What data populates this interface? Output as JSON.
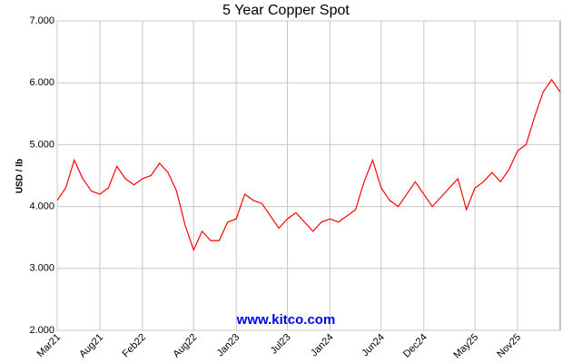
{
  "chart_data": {
    "type": "line",
    "title": "5 Year Copper Spot",
    "y_label": "USD / lb",
    "annotation": "www.kitco.com",
    "x": [
      "Mar21",
      null,
      null,
      null,
      null,
      "Aug21",
      null,
      null,
      null,
      null,
      "Feb22",
      null,
      null,
      null,
      null,
      null,
      "Aug22",
      null,
      null,
      null,
      null,
      "Jan23",
      null,
      null,
      null,
      null,
      null,
      "Jul23",
      null,
      null,
      null,
      null,
      "Jan24",
      null,
      null,
      null,
      null,
      null,
      "Jun24",
      null,
      null,
      null,
      null,
      "Dec24",
      null,
      null,
      null,
      null,
      null,
      "May25",
      null,
      null,
      null,
      null,
      "Nov25",
      null,
      null,
      null,
      null,
      null
    ],
    "series": [
      {
        "name": "Copper",
        "color": "#ff0000",
        "values": [
          4.1,
          4.3,
          4.75,
          4.45,
          4.25,
          4.2,
          4.3,
          4.65,
          4.45,
          4.35,
          4.45,
          4.5,
          4.7,
          4.55,
          4.25,
          3.7,
          3.3,
          3.6,
          3.45,
          3.45,
          3.75,
          3.8,
          4.2,
          4.1,
          4.05,
          3.85,
          3.65,
          3.8,
          3.9,
          3.75,
          3.6,
          3.75,
          3.8,
          3.75,
          3.85,
          3.95,
          4.4,
          4.75,
          4.3,
          4.1,
          4.0,
          4.2,
          4.4,
          4.2,
          4.0,
          4.15,
          4.3,
          4.45,
          3.95,
          4.3,
          4.4,
          4.55,
          4.4,
          4.6,
          4.9,
          5.0,
          5.45,
          5.85,
          6.05,
          5.85
        ]
      }
    ],
    "ylim": [
      2,
      7
    ],
    "yticks": [
      {
        "value": 2,
        "label": "2.000"
      },
      {
        "value": 3,
        "label": "3.000"
      },
      {
        "value": 4,
        "label": "4.000"
      },
      {
        "value": 5,
        "label": "5.000"
      },
      {
        "value": 6,
        "label": "6.000"
      },
      {
        "value": 7,
        "label": "7.000"
      }
    ],
    "grid": true
  }
}
